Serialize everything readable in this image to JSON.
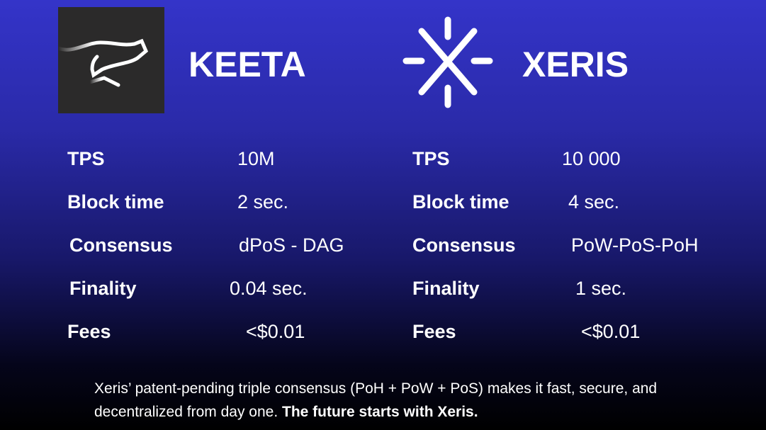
{
  "left": {
    "name": "KEETA",
    "logo": "running-cat-logo",
    "rows": [
      {
        "label": "TPS",
        "value": "10M"
      },
      {
        "label": "Block time",
        "value": "2 sec."
      },
      {
        "label": "Consensus",
        "value": "dPoS - DAG"
      },
      {
        "label": "Finality",
        "value": "0.04 sec."
      },
      {
        "label": "Fees",
        "value": "<$0.01"
      }
    ]
  },
  "right": {
    "name": "XERIS",
    "logo": "starburst-x-logo",
    "rows": [
      {
        "label": "TPS",
        "value": "10 000"
      },
      {
        "label": "Block time",
        "value": "4 sec."
      },
      {
        "label": "Consensus",
        "value": "PoW-PoS-PoH"
      },
      {
        "label": "Finality",
        "value": "1 sec."
      },
      {
        "label": "Fees",
        "value": "<$0.01"
      }
    ]
  },
  "footer": {
    "text": "Xeris’ patent-pending triple consensus (PoH + PoW + PoS) makes it fast, secure, and decentralized from day one.",
    "bold": "The future starts with Xeris."
  },
  "colors": {
    "background_top": "#3434c9",
    "background_bottom": "#000000",
    "logo_box": "#2b2a2a"
  }
}
